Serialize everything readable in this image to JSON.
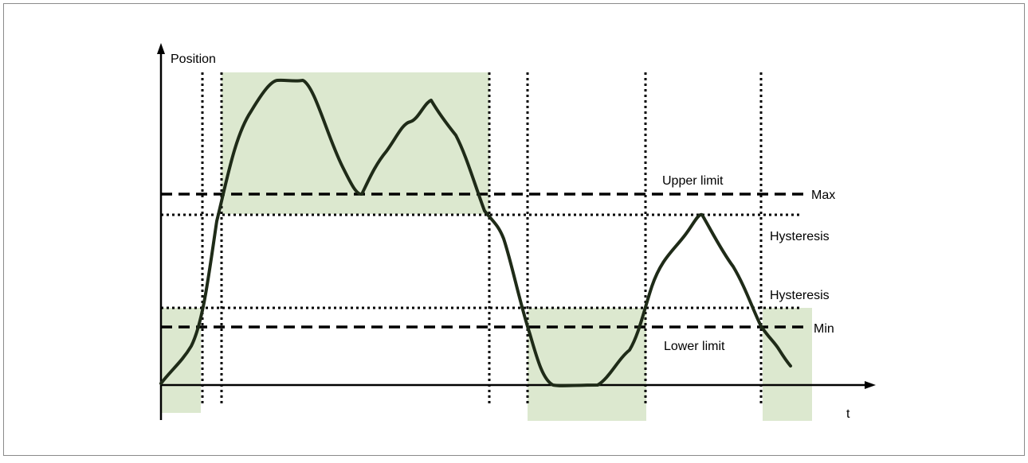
{
  "colors": {
    "zone_fill": "#dce8cf",
    "line": "#000000",
    "curve": "#1f2b18",
    "frame": "#8a8a8a"
  },
  "labels": {
    "y_axis": "Position",
    "x_axis": "t",
    "upper_limit": "Upper limit",
    "lower_limit": "Lower limit",
    "max": "Max",
    "min": "Min",
    "hysteresis_upper": "Hysteresis",
    "hysteresis_lower": "Hysteresis"
  }
}
